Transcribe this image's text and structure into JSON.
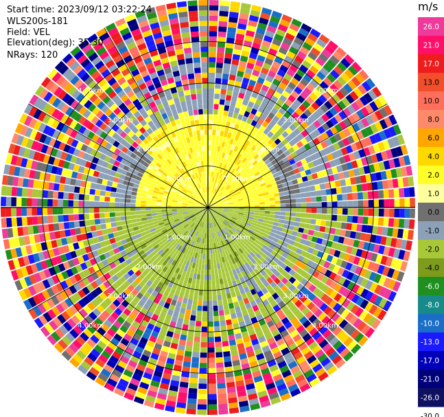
{
  "header": {
    "start_time": "Start time: 2023/09/12 03:22:24",
    "instrument": "WLS200s-181",
    "field": "Field: VEL",
    "elevation": "Elevation(deg): 35.30",
    "nrays": "NRays: 120"
  },
  "colorbar": {
    "unit": "m/s",
    "ticks": [
      "26.0",
      "21.0",
      "17.0",
      "13.0",
      "10.0",
      "8.0",
      "6.0",
      "4.0",
      "2.0",
      "1.0",
      "0.0",
      "-1.0",
      "-2.0",
      "-4.0",
      "-6.0",
      "-8.0",
      "-10.0",
      "-13.0",
      "-17.0",
      "-21.0",
      "-26.0",
      "-30.0"
    ],
    "colors": [
      "#ee3a9a",
      "#ff0f6a",
      "#ee1c1c",
      "#f24e2b",
      "#ff6f5b",
      "#ff8a6a",
      "#ffa600",
      "#ffd800",
      "#ffff2a",
      "#ffff9e",
      "#707070",
      "#8ca0b8",
      "#a8c83a",
      "#7d9c1c",
      "#1f8f1f",
      "#188a8a",
      "#1a6ec8",
      "#1a1aff",
      "#0000b8",
      "#00007a",
      "#101060"
    ]
  },
  "chart_data": {
    "type": "ppi",
    "field": "VEL",
    "units": "m/s",
    "n_rays": 120,
    "elevation_deg": 35.3,
    "range_rings_km": [
      1.0,
      2.0,
      3.0,
      4.0
    ],
    "ring_labels": [
      "1.00km",
      "2.00km",
      "3.00km",
      "4.00km"
    ],
    "max_range_km": 5.0,
    "spokes_deg": [
      0,
      30,
      60,
      90,
      120,
      150,
      180,
      210,
      240,
      270,
      300,
      330
    ],
    "grid": true
  }
}
